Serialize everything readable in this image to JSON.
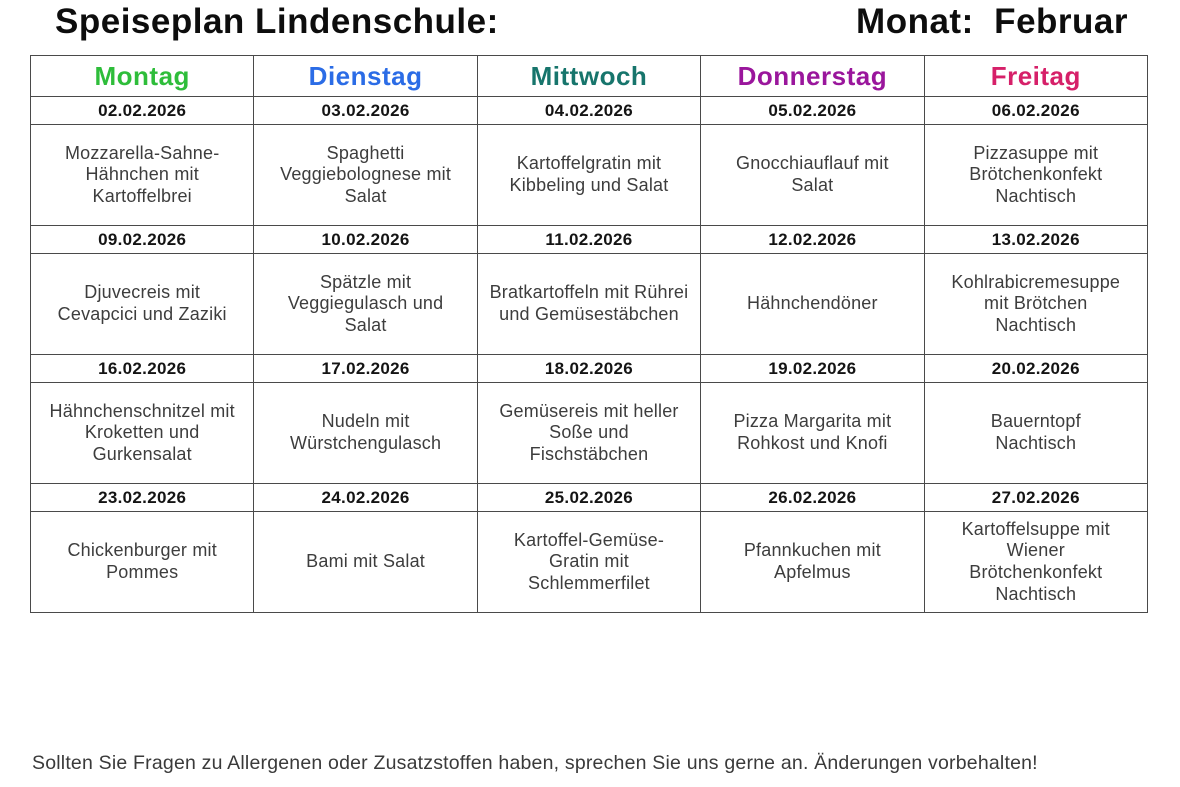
{
  "header": {
    "title": "Speiseplan Lindenschule:",
    "month_label": "Monat:  Februar"
  },
  "table": {
    "days": [
      {
        "label": "Montag",
        "color": "#2ebd3a"
      },
      {
        "label": "Dienstag",
        "color": "#2b6ce6"
      },
      {
        "label": "Mittwoch",
        "color": "#17756c"
      },
      {
        "label": "Donnerstag",
        "color": "#9a169c"
      },
      {
        "label": "Freitag",
        "color": "#d62069"
      }
    ],
    "weeks": [
      {
        "dates": [
          "02.02.2026",
          "03.02.2026",
          "04.02.2026",
          "05.02.2026",
          "06.02.2026"
        ],
        "meals": [
          "Mozzarella-Sahne-\nHähnchen mit\nKartoffelbrei",
          "Spaghetti\nVeggiebolognese mit\nSalat",
          "Kartoffelgratin mit\nKibbeling und Salat",
          "Gnocchiauflauf mit\nSalat",
          "Pizzasuppe mit\nBrötchenkonfekt\nNachtisch"
        ]
      },
      {
        "dates": [
          "09.02.2026",
          "10.02.2026",
          "11.02.2026",
          "12.02.2026",
          "13.02.2026"
        ],
        "meals": [
          "Djuvecreis mit\nCevapcici und Zaziki",
          "Spätzle mit\nVeggiegulasch und\nSalat",
          "Bratkartoffeln mit Rührei\nund Gemüsestäbchen",
          "Hähnchendöner",
          "Kohlrabicremesuppe\nmit Brötchen\nNachtisch"
        ]
      },
      {
        "dates": [
          "16.02.2026",
          "17.02.2026",
          "18.02.2026",
          "19.02.2026",
          "20.02.2026"
        ],
        "meals": [
          "Hähnchenschnitzel mit\nKroketten und\nGurkensalat",
          "Nudeln mit\nWürstchengulasch",
          "Gemüsereis mit heller\nSoße und\nFischstäbchen",
          "Pizza Margarita mit\nRohkost und Knofi",
          "Bauerntopf\nNachtisch"
        ]
      },
      {
        "dates": [
          "23.02.2026",
          "24.02.2026",
          "25.02.2026",
          "26.02.2026",
          "27.02.2026"
        ],
        "meals": [
          "Chickenburger mit\nPommes",
          "Bami mit Salat",
          "Kartoffel-Gemüse-\nGratin mit\nSchlemmerfilet",
          "Pfannkuchen mit\nApfelmus",
          "Kartoffelsuppe mit\nWiener\nBrötchenkonfekt\nNachtisch"
        ]
      }
    ]
  },
  "footer": {
    "note": "Sollten Sie Fragen zu Allergenen oder Zusatzstoffen haben, sprechen Sie uns gerne an. Änderungen vorbehalten!"
  }
}
